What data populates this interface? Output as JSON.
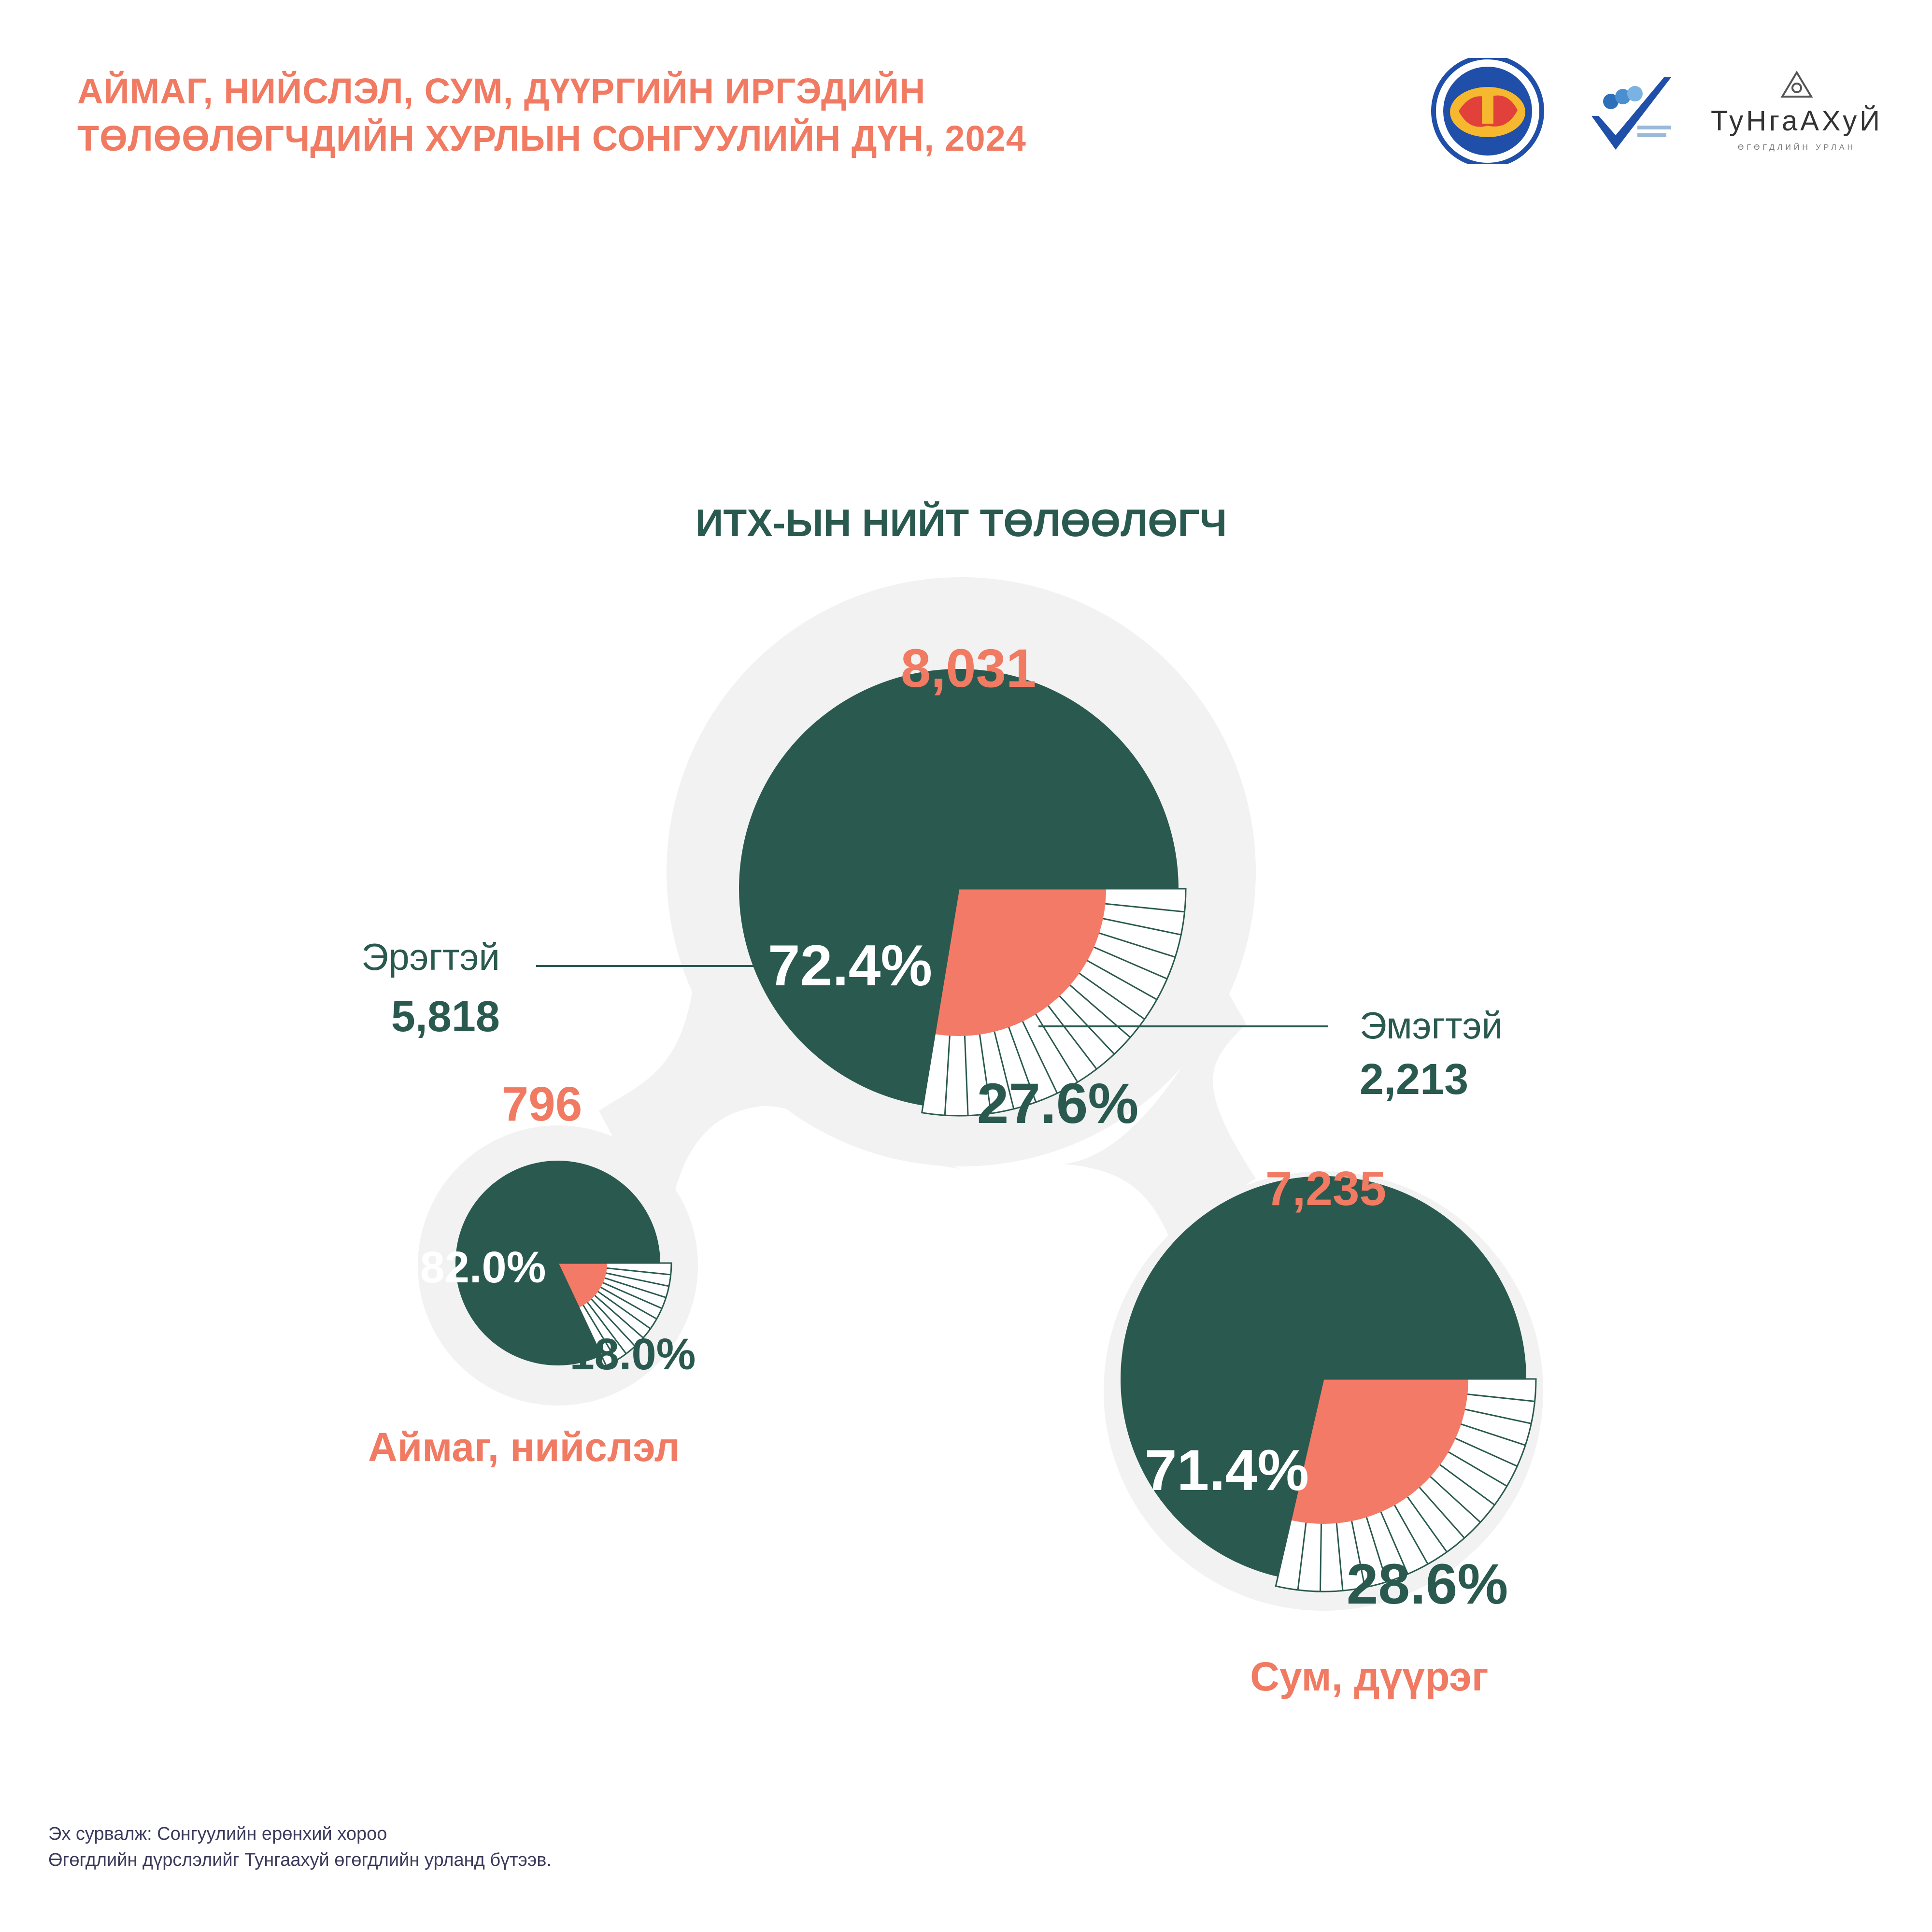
{
  "header": {
    "title_line1": "АЙМАГ, НИЙСЛЭЛ, СУМ, ДҮҮРГИЙН ИРГЭДИЙН",
    "title_line2": "ТӨЛӨӨЛӨГЧДИЙН ХУРЛЫН СОНГУУЛИЙН ДҮН, 2024"
  },
  "logos": {
    "gec_logo": "General Election Commission of Mongolia",
    "voter_education_logo": "Сонгуулийн ерөнхий хороо",
    "tungaakhui_logo": "ТуНгаАХуЙ",
    "tungaakhui_sub": "ӨГӨГДЛИЙН УРЛАН"
  },
  "colors": {
    "female": "#F37A66",
    "male": "#2A5A4F",
    "bubble": "#F1F2F1",
    "accent_text": "#F07A62"
  },
  "chart_data": {
    "type": "pie",
    "title": "ИТХ-ЫН НИЙТ ТӨЛӨӨЛӨГЧ",
    "charts": [
      {
        "id": "total",
        "label": "",
        "total": "8,031",
        "male_percent": 72.4,
        "female_percent": 27.6,
        "male_label": "72.4%",
        "female_label": "27.6%",
        "legend": {
          "male_name": "Эрэгтэй",
          "male_count": "5,818",
          "female_name": "Эмэгтэй",
          "female_count": "2,213"
        }
      },
      {
        "id": "aimag",
        "label": "Аймаг, нийслэл",
        "total": "796",
        "male_percent": 82.0,
        "female_percent": 18.0,
        "male_label": "82.0%",
        "female_label": "18.0%"
      },
      {
        "id": "sum",
        "label": "Сум, дүүрэг",
        "total": "7,235",
        "male_percent": 71.4,
        "female_percent": 28.6,
        "male_label": "71.4%",
        "female_label": "28.6%"
      }
    ]
  },
  "footer": {
    "source_line1": "Эх сурвалж: Сонгуулийн ерөнхий хороо",
    "source_line2": "Өгөгдлийн дүрслэлийг Тунгаахуй өгөгдлийн урланд бүтээв."
  }
}
